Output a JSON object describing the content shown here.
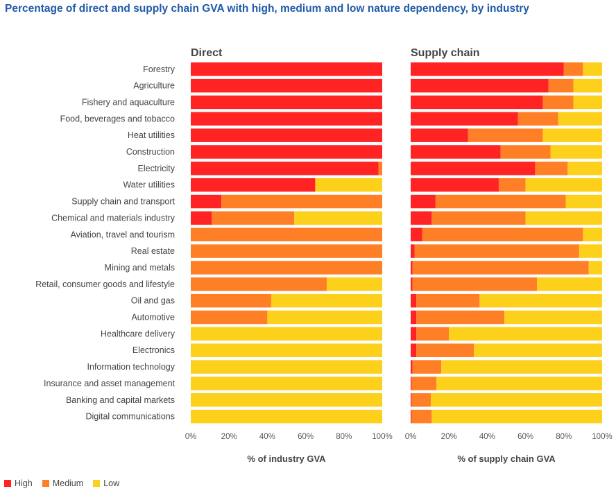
{
  "title": "Percentage of direct and supply chain GVA with high, medium and low nature dependency, by industry",
  "colors": {
    "high": "#ff2323",
    "medium": "#ff7f27",
    "low": "#fcd01b"
  },
  "legend": [
    {
      "key": "high",
      "label": "High"
    },
    {
      "key": "medium",
      "label": "Medium"
    },
    {
      "key": "low",
      "label": "Low"
    }
  ],
  "chart_data": {
    "type": "bar",
    "orientation": "horizontal",
    "stacked": true,
    "categories": [
      "Forestry",
      "Agriculture",
      "Fishery and aquaculture",
      "Food, beverages and tobacco",
      "Heat utilities",
      "Construction",
      "Electricity",
      "Water utilities",
      "Supply chain and transport",
      "Chemical and materials industry",
      "Aviation, travel and tourism",
      "Real estate",
      "Mining and metals",
      "Retail, consumer goods and lifestyle",
      "Oil and gas",
      "Automotive",
      "Healthcare delivery",
      "Electronics",
      "Information technology",
      "Insurance and asset management",
      "Banking and capital markets",
      "Digital communications"
    ],
    "panels": [
      {
        "title": "Direct",
        "xlabel": "% of industry GVA",
        "xlim": [
          0,
          100
        ],
        "ticks": [
          "0%",
          "20%",
          "40%",
          "60%",
          "80%",
          "100%"
        ],
        "series": [
          {
            "name": "High",
            "values": [
              100,
              100,
              100,
              100,
              100,
              100,
              98,
              65,
              16,
              11,
              0,
              0,
              0,
              0,
              0,
              0,
              0,
              0,
              0,
              0,
              0,
              0
            ]
          },
          {
            "name": "Medium",
            "values": [
              0,
              0,
              0,
              0,
              0,
              0,
              2,
              0,
              84,
              43,
              100,
              100,
              100,
              71,
              42,
              40,
              0,
              0,
              0,
              0,
              0,
              0
            ]
          },
          {
            "name": "Low",
            "values": [
              0,
              0,
              0,
              0,
              0,
              0,
              0,
              35,
              0,
              46,
              0,
              0,
              0,
              29,
              58,
              60,
              100,
              100,
              100,
              100,
              100,
              100
            ]
          }
        ]
      },
      {
        "title": "Supply chain",
        "xlabel": "% of supply chain GVA",
        "xlim": [
          0,
          100
        ],
        "ticks": [
          "0%",
          "20%",
          "40%",
          "60%",
          "80%",
          "100%"
        ],
        "series": [
          {
            "name": "High",
            "values": [
              80,
              72,
              69,
              56,
              30,
              47,
              65,
              46,
              13,
              11,
              6,
              2,
              1,
              1,
              3,
              3,
              3,
              3,
              1,
              0.5,
              0.5,
              0.5
            ]
          },
          {
            "name": "Medium",
            "values": [
              10,
              13,
              16,
              21,
              39,
              26,
              17,
              14,
              68,
              49,
              84,
              86,
              92,
              65,
              33,
              46,
              17,
              30,
              15,
              13,
              10,
              10.5
            ]
          },
          {
            "name": "Low",
            "values": [
              10,
              15,
              15,
              23,
              31,
              27,
              18,
              40,
              19,
              40,
              10,
              12,
              7,
              34,
              64,
              51,
              80,
              67,
              84,
              86.5,
              89.5,
              89
            ]
          }
        ]
      }
    ]
  }
}
